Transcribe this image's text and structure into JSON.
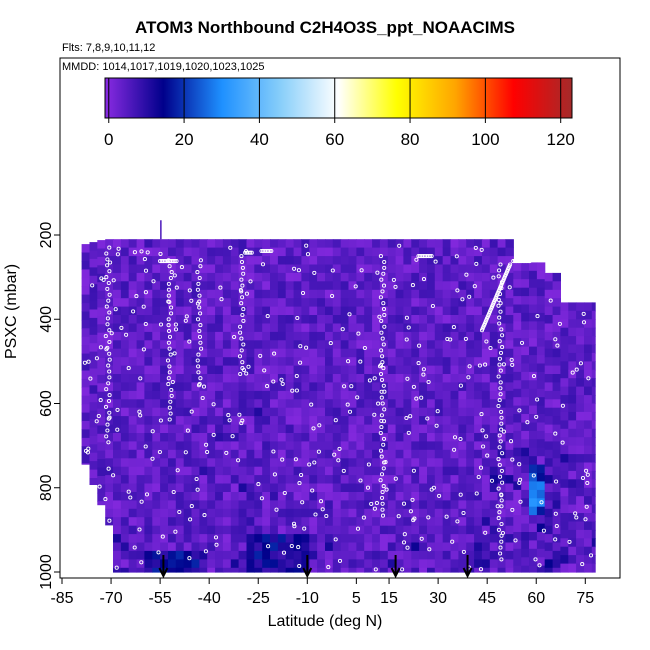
{
  "chart_data": {
    "type": "heatmap",
    "title": "ATOM3 Northbound C2H4O3S_ppt_NOAACIMS",
    "subtitle_flights": "Flts: 7,8,9,10,11,12",
    "subtitle_dates": "MMDD: 1014,1017,1019,1020,1023,1025",
    "xlabel": "Latitude (deg N)",
    "ylabel": "PSXC (mbar)",
    "xlim": [
      -85,
      85
    ],
    "ylim": [
      1000,
      200
    ],
    "x_ticks": [
      -85,
      -70,
      -55,
      -40,
      -25,
      -10,
      5,
      15,
      30,
      45,
      60,
      75
    ],
    "y_ticks": [
      200,
      400,
      600,
      800,
      1000
    ],
    "colorbar": {
      "range": [
        -1,
        123
      ],
      "ticks": [
        0,
        20,
        40,
        60,
        80,
        100,
        120
      ],
      "colors": [
        "#8a2be2",
        "#00008b",
        "#1e90ff",
        "#87cefa",
        "#ffffff",
        "#ffff00",
        "#ffa500",
        "#ff0000",
        "#a52a2a"
      ]
    },
    "arrows_latitude": [
      -54,
      -10,
      17,
      39
    ],
    "typical_value_range": [
      0,
      8
    ],
    "enhanced_regions": [
      {
        "lat_range": [
          -30,
          -10
        ],
        "pressure_range": [
          900,
          1000
        ],
        "value": 12
      },
      {
        "lat_range": [
          -60,
          -45
        ],
        "pressure_range": [
          950,
          1000
        ],
        "value": 14
      },
      {
        "lat_range": [
          56,
          62
        ],
        "pressure_range": [
          740,
          860
        ],
        "value": 25
      }
    ]
  }
}
